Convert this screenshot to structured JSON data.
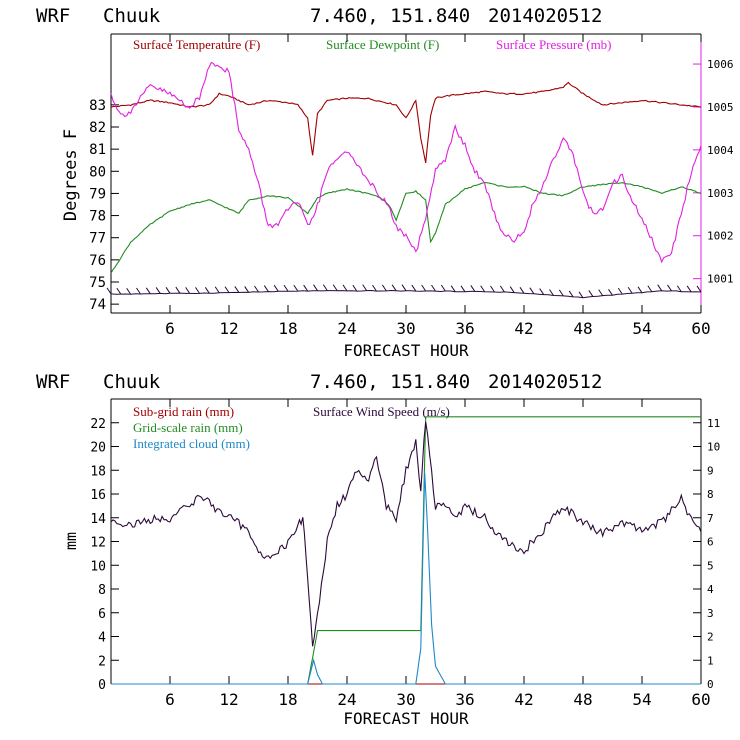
{
  "chart_data": [
    {
      "type": "line",
      "header": {
        "model": "WRF",
        "station": "Chuuk",
        "coords": "7.460, 151.840",
        "date": "2014020512"
      },
      "xlabel": "FORECAST HOUR",
      "ylabel": "Degrees F",
      "xlim": [
        0,
        60
      ],
      "ylim": [
        73.6,
        86.2
      ],
      "y2lim": [
        1000.2,
        1006.7
      ],
      "x_ticks": [
        6,
        12,
        18,
        24,
        30,
        36,
        42,
        48,
        54,
        60
      ],
      "y_ticks": [
        74,
        75,
        76,
        77,
        78,
        79,
        80,
        81,
        82,
        83
      ],
      "y2_ticks": [
        1001,
        1002,
        1003,
        1004,
        1005,
        1006
      ],
      "colors": {
        "temp": "#a00000",
        "dew": "#228b22",
        "pres": "#e020e0",
        "wind": "#2a0a3a",
        "axis": "#000000",
        "right_axis": "#e020e0"
      },
      "series": [
        {
          "name": "Surface Temperature (F)",
          "axis": "left",
          "x": [
            0,
            2,
            4,
            6,
            8,
            10,
            11,
            12,
            14,
            16,
            18,
            19,
            20,
            20.5,
            21,
            22,
            24,
            26,
            28,
            29,
            30,
            31,
            31.5,
            32,
            32.5,
            33,
            34,
            36,
            38,
            40,
            42,
            44,
            46,
            46.5,
            48,
            50,
            52,
            54,
            56,
            58,
            60
          ],
          "y": [
            82.9,
            83.0,
            83.2,
            83.1,
            82.9,
            83.0,
            83.5,
            83.4,
            83.0,
            83.2,
            83.1,
            83.0,
            82.4,
            80.7,
            82.6,
            83.2,
            83.3,
            83.3,
            83.1,
            83.0,
            82.4,
            83.2,
            81.5,
            80.4,
            82.5,
            83.3,
            83.4,
            83.5,
            83.6,
            83.5,
            83.5,
            83.6,
            83.8,
            84.0,
            83.5,
            83.0,
            83.1,
            83.2,
            83.1,
            83.0,
            82.9
          ]
        },
        {
          "name": "Surface Dewpoint (F)",
          "axis": "left",
          "x": [
            0,
            2,
            4,
            6,
            8,
            10,
            11,
            12,
            13,
            14,
            16,
            18,
            20,
            21,
            22,
            24,
            26,
            27,
            28,
            28.5,
            29,
            30,
            31,
            32,
            32.5,
            33,
            34,
            36,
            38,
            40,
            42,
            44,
            46,
            48,
            50,
            52,
            54,
            56,
            58,
            60
          ],
          "y": [
            75.4,
            76.8,
            77.6,
            78.2,
            78.5,
            78.7,
            78.5,
            78.3,
            78.1,
            78.7,
            78.9,
            78.8,
            78.1,
            78.8,
            79.0,
            79.2,
            79.0,
            78.9,
            78.6,
            78.3,
            77.8,
            79.0,
            79.1,
            78.7,
            76.8,
            77.2,
            78.5,
            79.2,
            79.5,
            79.3,
            79.3,
            79.0,
            78.9,
            79.3,
            79.4,
            79.5,
            79.3,
            79.0,
            79.3,
            79.0
          ]
        },
        {
          "name": "Surface Pressure (mb)",
          "axis": "right",
          "x": [
            0,
            1,
            2,
            4,
            6,
            8,
            9,
            10,
            11,
            12,
            13,
            14,
            15,
            16,
            17,
            18,
            19,
            20,
            21,
            22,
            23,
            24,
            25,
            26,
            27,
            28,
            29,
            30,
            31,
            32,
            33,
            34,
            35,
            36,
            37,
            38,
            39,
            40,
            41,
            42,
            43,
            44,
            45,
            46,
            47,
            48,
            49,
            50,
            51,
            52,
            53,
            54,
            55,
            56,
            57,
            58,
            59,
            60
          ],
          "y": [
            1005.3,
            1004.8,
            1004.9,
            1005.5,
            1005.3,
            1005.0,
            1005.2,
            1006.0,
            1006.0,
            1005.8,
            1004.5,
            1004.0,
            1003.2,
            1002.2,
            1002.3,
            1002.6,
            1002.8,
            1002.2,
            1002.7,
            1003.5,
            1003.8,
            1004.0,
            1003.6,
            1003.4,
            1003.0,
            1002.8,
            1002.2,
            1002.0,
            1001.6,
            1002.4,
            1003.5,
            1003.8,
            1004.5,
            1004.1,
            1003.5,
            1003.2,
            1002.5,
            1002.0,
            1001.9,
            1002.1,
            1002.8,
            1003.2,
            1003.8,
            1004.3,
            1003.9,
            1003.0,
            1002.5,
            1002.6,
            1003.2,
            1003.4,
            1002.8,
            1002.4,
            1001.9,
            1001.4,
            1001.6,
            1002.5,
            1003.5,
            1004.1
          ]
        },
        {
          "name": "Wind barbs",
          "axis": "left",
          "x": [
            0,
            10,
            20,
            30,
            40,
            45,
            48,
            52,
            56,
            60
          ],
          "y": [
            74.45,
            74.5,
            74.6,
            74.6,
            74.55,
            74.4,
            74.3,
            74.45,
            74.6,
            74.55
          ]
        }
      ]
    },
    {
      "type": "line",
      "header": {
        "model": "WRF",
        "station": "Chuuk",
        "coords": "7.460, 151.840",
        "date": "2014020512"
      },
      "xlabel": "FORECAST HOUR",
      "ylabel": "mm",
      "xlim": [
        0,
        60
      ],
      "ylim": [
        0,
        24
      ],
      "y2lim": [
        0,
        12
      ],
      "x_ticks": [
        6,
        12,
        18,
        24,
        30,
        36,
        42,
        48,
        54,
        60
      ],
      "y_ticks": [
        0,
        2,
        4,
        6,
        8,
        10,
        12,
        14,
        16,
        18,
        20,
        22
      ],
      "y2_ticks": [
        0,
        1,
        2,
        3,
        4,
        5,
        6,
        7,
        8,
        9,
        10,
        11
      ],
      "series": [
        {
          "name": "Sub-grid rain (mm)",
          "axis": "left",
          "x": [
            0,
            60
          ],
          "y": [
            0,
            0
          ]
        },
        {
          "name": "Grid-scale rain (mm)",
          "axis": "left",
          "x": [
            0,
            20,
            20.5,
            21,
            31.5,
            32,
            33,
            60
          ],
          "y": [
            0,
            0,
            2.2,
            4.5,
            4.5,
            22.5,
            22.5,
            22.5
          ]
        },
        {
          "name": "Integrated cloud (mm)",
          "axis": "left",
          "x": [
            0,
            20,
            20.3,
            20.6,
            21,
            21.5,
            31,
            31.5,
            31.9,
            32.2,
            32.6,
            33,
            34,
            60
          ],
          "y": [
            0,
            0,
            1.0,
            2.0,
            0.8,
            0,
            0,
            3.0,
            17.8,
            13.0,
            5.0,
            1.5,
            0,
            0
          ]
        },
        {
          "name": "Surface Wind Speed (m/s)",
          "axis": "right",
          "x": [
            0,
            2,
            4,
            6,
            8,
            9,
            10,
            12,
            14,
            15,
            16,
            18,
            19,
            19.5,
            20,
            20.5,
            21,
            22,
            23,
            24,
            25,
            26,
            27,
            28,
            29,
            30,
            31,
            31.5,
            32,
            33,
            34,
            35,
            36,
            38,
            40,
            42,
            44,
            46,
            48,
            50,
            52,
            54,
            56,
            58,
            59,
            60
          ],
          "y": [
            6.9,
            6.7,
            6.9,
            7.0,
            7.5,
            8.0,
            7.6,
            7.0,
            6.5,
            5.5,
            5.3,
            5.9,
            6.7,
            7.0,
            4.5,
            1.5,
            3.0,
            6.0,
            7.5,
            8.0,
            9.0,
            8.5,
            9.5,
            7.5,
            7.0,
            9.0,
            10.2,
            8.0,
            11.2,
            7.5,
            7.5,
            7.0,
            7.5,
            7.0,
            6.0,
            5.6,
            6.5,
            7.5,
            6.8,
            6.3,
            6.8,
            6.5,
            6.8,
            7.8,
            6.9,
            6.4
          ]
        }
      ]
    }
  ]
}
